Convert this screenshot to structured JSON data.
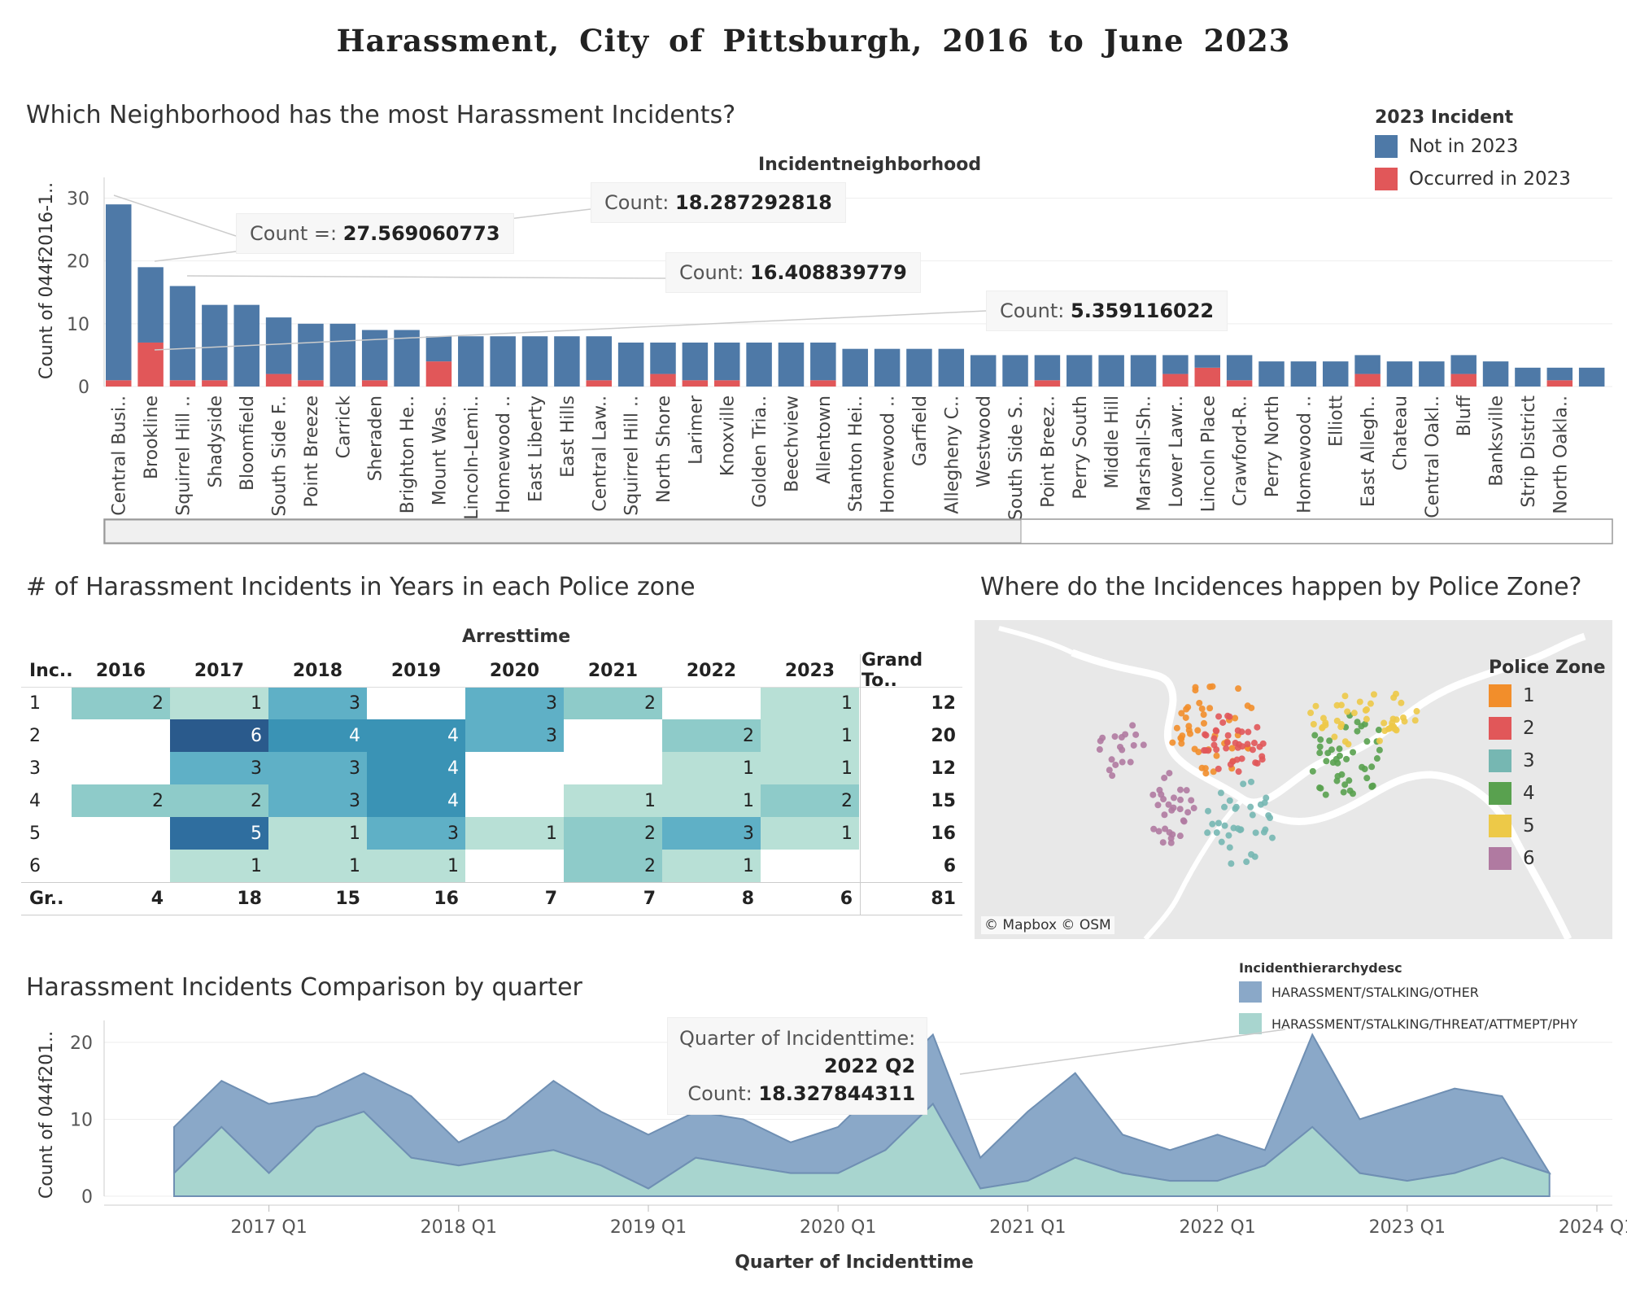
{
  "title": "Harassment, City of Pittsburgh, 2016 to June 2023",
  "chart_data": [
    {
      "type": "bar",
      "stacked": true,
      "sheet_title": "Which Neighborhood has the most Harassment Incidents?",
      "header": "Incidentneighborhood",
      "ylabel": "Count of 044f2016-1..",
      "ylim": [
        0,
        32
      ],
      "yticks": [
        0,
        10,
        20,
        30
      ],
      "legend": {
        "title": "2023 Incident",
        "placement": "top-right",
        "items": [
          {
            "label": "Not in 2023",
            "color": "#4e79a7"
          },
          {
            "label": "Occurred in 2023",
            "color": "#e15759"
          }
        ]
      },
      "categories": [
        "Central Busi..",
        "Brookline",
        "Squirrel Hill ..",
        "Shadyside",
        "Bloomfield",
        "South Side F..",
        "Point Breeze",
        "Carrick",
        "Sheraden",
        "Brighton He..",
        "Mount Was..",
        "Lincoln-Lemi..",
        "Homewood ..",
        "East Liberty",
        "East Hills",
        "Central Law..",
        "Squirrel Hill ..",
        "North Shore",
        "Larimer",
        "Knoxville",
        "Golden Tria..",
        "Beechview",
        "Allentown",
        "Stanton Hei..",
        "Homewood ..",
        "Garfield",
        "Allegheny C..",
        "Westwood",
        "South Side S..",
        "Point Breez..",
        "Perry South",
        "Middle Hill",
        "Marshall-Sh..",
        "Lower Lawr..",
        "Lincoln Place",
        "Crawford-R..",
        "Perry North",
        "Homewood ..",
        "Elliott",
        "East Allegh..",
        "Chateau",
        "Central Oakl..",
        "Bluff",
        "Banksville",
        "Strip District",
        "North Oakla..",
        ""
      ],
      "series": [
        {
          "name": "Not in 2023",
          "values": [
            28,
            12,
            15,
            12,
            13,
            9,
            9,
            10,
            8,
            9,
            4,
            8,
            8,
            8,
            8,
            7,
            7,
            5,
            6,
            6,
            7,
            7,
            6,
            6,
            6,
            6,
            6,
            5,
            5,
            4,
            5,
            5,
            5,
            3,
            2,
            4,
            4,
            4,
            4,
            3,
            4,
            4,
            3,
            4,
            3,
            2,
            3
          ]
        },
        {
          "name": "Occurred in 2023",
          "values": [
            1,
            7,
            1,
            1,
            0,
            2,
            1,
            0,
            1,
            0,
            4,
            0,
            0,
            0,
            0,
            1,
            0,
            2,
            1,
            1,
            0,
            0,
            1,
            0,
            0,
            0,
            0,
            0,
            0,
            1,
            0,
            0,
            0,
            2,
            3,
            1,
            0,
            0,
            0,
            2,
            0,
            0,
            2,
            0,
            0,
            1,
            0
          ]
        }
      ],
      "tooltips": [
        {
          "label": "Count =:",
          "value": "27.569060773"
        },
        {
          "label": "Count:",
          "value": "18.287292818"
        },
        {
          "label": "Count:",
          "value": "16.408839779"
        },
        {
          "label": "Count:",
          "value": "5.359116022"
        }
      ]
    },
    {
      "type": "heatmap",
      "sheet_title": "# of Harassment Incidents in Years  in each Police zone",
      "header": "Arresttime",
      "row_header": "Inc..",
      "columns": [
        "2016",
        "2017",
        "2018",
        "2019",
        "2020",
        "2021",
        "2022",
        "2023"
      ],
      "grand_total_label": "Grand To..",
      "rows": [
        {
          "label": "1",
          "values": [
            2,
            1,
            3,
            null,
            3,
            2,
            null,
            1
          ],
          "total": "12"
        },
        {
          "label": "2",
          "values": [
            null,
            6,
            4,
            4,
            3,
            null,
            2,
            1
          ],
          "total": "20"
        },
        {
          "label": "3",
          "values": [
            null,
            3,
            3,
            4,
            null,
            null,
            1,
            1
          ],
          "total": "12"
        },
        {
          "label": "4",
          "values": [
            2,
            2,
            3,
            4,
            null,
            1,
            1,
            2
          ],
          "total": "15"
        },
        {
          "label": "5",
          "values": [
            null,
            5,
            1,
            3,
            1,
            2,
            3,
            1
          ],
          "total": "16"
        },
        {
          "label": "6",
          "values": [
            null,
            1,
            1,
            1,
            null,
            2,
            1,
            null
          ],
          "total": "6"
        }
      ],
      "footer": {
        "label": "Gr..",
        "values": [
          "4",
          "18",
          "15",
          "16",
          "7",
          "7",
          "8",
          "6"
        ],
        "total": "81"
      }
    },
    {
      "type": "area",
      "sheet_title": "Harassment Incidents Comparison by quarter",
      "xlabel": "Quarter of Incidenttime",
      "ylabel": "Count of 044f201..",
      "ylim": [
        0,
        22
      ],
      "yticks": [
        0,
        10,
        20
      ],
      "x_tick_labels": [
        "2017 Q1",
        "2018 Q1",
        "2019 Q1",
        "2020 Q1",
        "2021 Q1",
        "2022 Q1",
        "2023 Q1",
        "2024 Q1"
      ],
      "x": [
        "2016 Q3",
        "2016 Q4",
        "2017 Q1",
        "2017 Q2",
        "2017 Q3",
        "2017 Q4",
        "2018 Q1",
        "2018 Q2",
        "2018 Q3",
        "2018 Q4",
        "2019 Q1",
        "2019 Q2",
        "2019 Q3",
        "2019 Q4",
        "2020 Q1",
        "2020 Q2",
        "2020 Q3",
        "2020 Q4",
        "2021 Q1",
        "2021 Q2",
        "2021 Q3",
        "2021 Q4",
        "2022 Q1",
        "2022 Q2",
        "2022 Q3",
        "2022 Q4",
        "2023 Q1",
        "2023 Q2",
        "2023 Q3",
        "2023 Q4"
      ],
      "legend": {
        "title": "Incidenthierarchydesc",
        "placement": "top-right",
        "items": [
          {
            "label": "HARASSMENT/STALKING/OTHER",
            "color": "#8aa8c8"
          },
          {
            "label": "HARASSMENT/STALKING/THREAT/ATTMEPT/PHY",
            "color": "#a8d5cf"
          }
        ]
      },
      "series": [
        {
          "name": "HARASSMENT/STALKING/OTHER",
          "values": [
            6,
            6,
            9,
            4,
            5,
            8,
            3,
            5,
            9,
            7,
            7,
            6,
            6,
            4,
            6,
            9,
            9,
            4,
            9,
            11,
            5,
            4,
            6,
            2,
            12,
            7,
            10,
            11,
            8,
            0
          ]
        },
        {
          "name": "HARASSMENT/STALKING/THREAT/ATTMEPT/PHY",
          "values": [
            3,
            9,
            3,
            9,
            11,
            5,
            4,
            5,
            6,
            4,
            1,
            5,
            4,
            3,
            3,
            6,
            12,
            1,
            2,
            5,
            3,
            2,
            2,
            4,
            9,
            3,
            2,
            3,
            5,
            3
          ]
        }
      ],
      "tooltip": {
        "label1": "Quarter of Incidenttime:",
        "value1": "2022 Q2",
        "label2": "Count:",
        "value2": "18.327844311"
      }
    }
  ],
  "map": {
    "sheet_title": "Where do the Incidences happen by Police Zone?",
    "attribution": "© Mapbox © OSM",
    "legend": {
      "title": "Police Zone",
      "placement": "right",
      "items": [
        {
          "label": "1",
          "color": "#f28e2b"
        },
        {
          "label": "2",
          "color": "#e15759"
        },
        {
          "label": "3",
          "color": "#76b7b2"
        },
        {
          "label": "4",
          "color": "#59a14f"
        },
        {
          "label": "5",
          "color": "#edc948"
        },
        {
          "label": "6",
          "color": "#b07aa1"
        }
      ]
    }
  }
}
